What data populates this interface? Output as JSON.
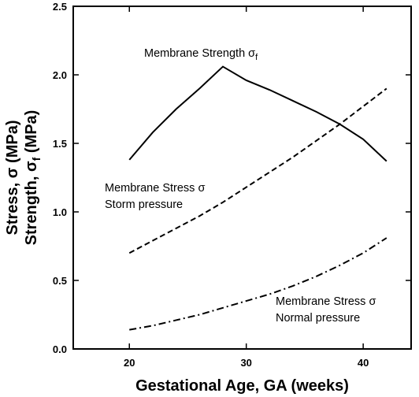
{
  "chart_data": {
    "type": "line",
    "x": [
      20,
      22,
      24,
      26,
      28,
      30,
      32,
      34,
      36,
      38,
      40,
      42
    ],
    "series": [
      {
        "color": "#000000",
        "dash": "solid",
        "values": [
          1.38,
          1.58,
          1.75,
          1.9,
          2.06,
          1.96,
          1.89,
          1.81,
          1.73,
          1.64,
          1.53,
          1.37
        ]
      },
      {
        "color": "#000000",
        "dash": "dashed",
        "values": [
          0.7,
          0.79,
          0.88,
          0.97,
          1.07,
          1.18,
          1.29,
          1.4,
          1.52,
          1.64,
          1.77,
          1.9
        ]
      },
      {
        "color": "#000000",
        "dash": "dashdot",
        "values": [
          0.14,
          0.17,
          0.21,
          0.25,
          0.3,
          0.35,
          0.4,
          0.46,
          0.53,
          0.61,
          0.7,
          0.81
        ]
      }
    ],
    "annotations": [
      [
        {
          "text": "Membrane Strength σ",
          "sub": "f"
        }
      ],
      [
        {
          "text": "Membrane Stress σ"
        },
        {
          "text": "Storm pressure"
        }
      ],
      [
        {
          "text": "Membrane Stress σ"
        },
        {
          "text": "Normal pressure"
        }
      ]
    ],
    "x_label": "Gestational Age, GA (weeks)",
    "y_label": [
      {
        "text": "Stress, σ (MPa)"
      },
      {
        "text": "Strength, σ",
        "sub": "f",
        "after": " (MPa)"
      }
    ],
    "xlim": [
      15.2,
      44.1
    ],
    "xticks": [
      20,
      30,
      40
    ],
    "ylim": [
      0,
      2.5
    ],
    "yticks": [
      {
        "value": 0,
        "label": "0.0"
      },
      0.5,
      {
        "value": 1,
        "label": "1.0"
      },
      1.5,
      {
        "value": 2,
        "label": "2.0"
      },
      2.5
    ]
  }
}
